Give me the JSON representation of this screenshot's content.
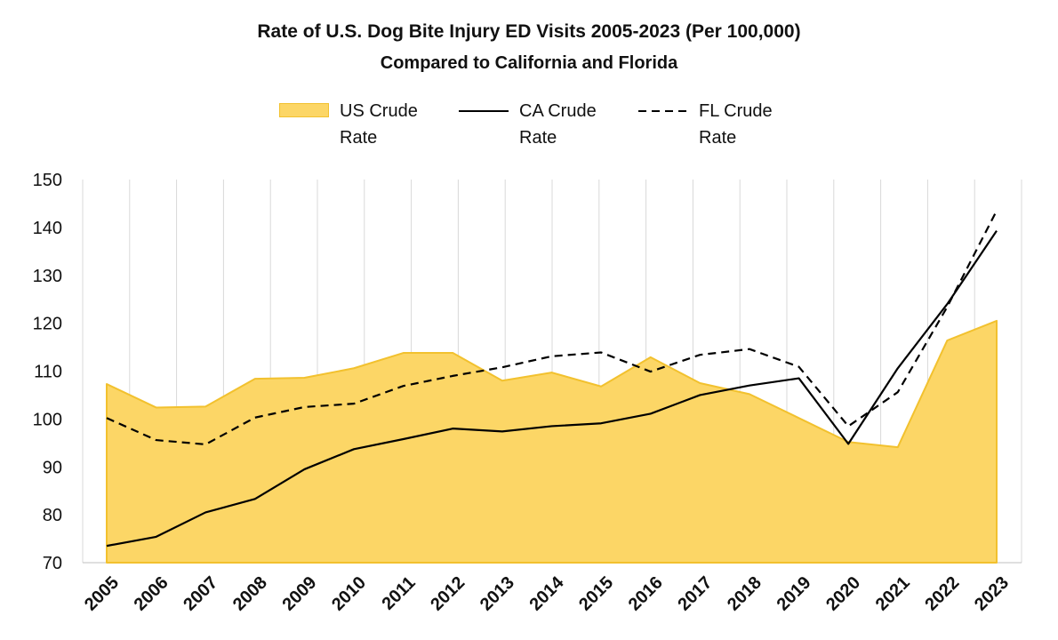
{
  "chart_data": {
    "type": "area",
    "title": "Rate of U.S. Dog Bite Injury ED Visits 2005-2023 (Per 100,000)",
    "subtitle": "Compared to California and Florida",
    "categories": [
      "2005",
      "2006",
      "2007",
      "2008",
      "2009",
      "2010",
      "2011",
      "2012",
      "2013",
      "2014",
      "2015",
      "2016",
      "2017",
      "2018",
      "2019",
      "2020",
      "2021",
      "2022",
      "2023"
    ],
    "ylim": [
      70,
      150
    ],
    "yticks": [
      70,
      80,
      90,
      100,
      110,
      120,
      130,
      140,
      150
    ],
    "grid": "vertical",
    "legend_position": "top",
    "series": [
      {
        "name": "US Crude Rate",
        "style": "area",
        "color": "#FCD666",
        "edge": "#F2C12E",
        "values": [
          107.3,
          102.4,
          102.6,
          108.4,
          108.6,
          110.6,
          113.8,
          113.8,
          108.0,
          109.7,
          106.8,
          112.9,
          107.5,
          105.2,
          100.2,
          95.2,
          94.1,
          116.4,
          120.5
        ]
      },
      {
        "name": "CA Crude Rate",
        "style": "solid",
        "color": "#000000",
        "values": [
          73.5,
          75.4,
          80.5,
          83.3,
          89.5,
          93.7,
          95.8,
          98.0,
          97.4,
          98.5,
          99.1,
          101.1,
          105.0,
          107.0,
          108.5,
          94.8,
          110.6,
          124.0,
          139.3
        ]
      },
      {
        "name": "FL Crude Rate",
        "style": "dashed",
        "color": "#000000",
        "values": [
          100.2,
          95.6,
          94.7,
          100.3,
          102.5,
          103.2,
          106.9,
          109.0,
          110.8,
          113.1,
          113.9,
          109.9,
          113.4,
          114.6,
          110.9,
          98.5,
          105.6,
          123.4,
          143.5
        ]
      }
    ]
  },
  "legend": {
    "us": {
      "line1": "US Crude",
      "line2": "Rate"
    },
    "ca": {
      "line1": "CA Crude",
      "line2": "Rate"
    },
    "fl": {
      "line1": "FL Crude",
      "line2": "Rate"
    }
  }
}
